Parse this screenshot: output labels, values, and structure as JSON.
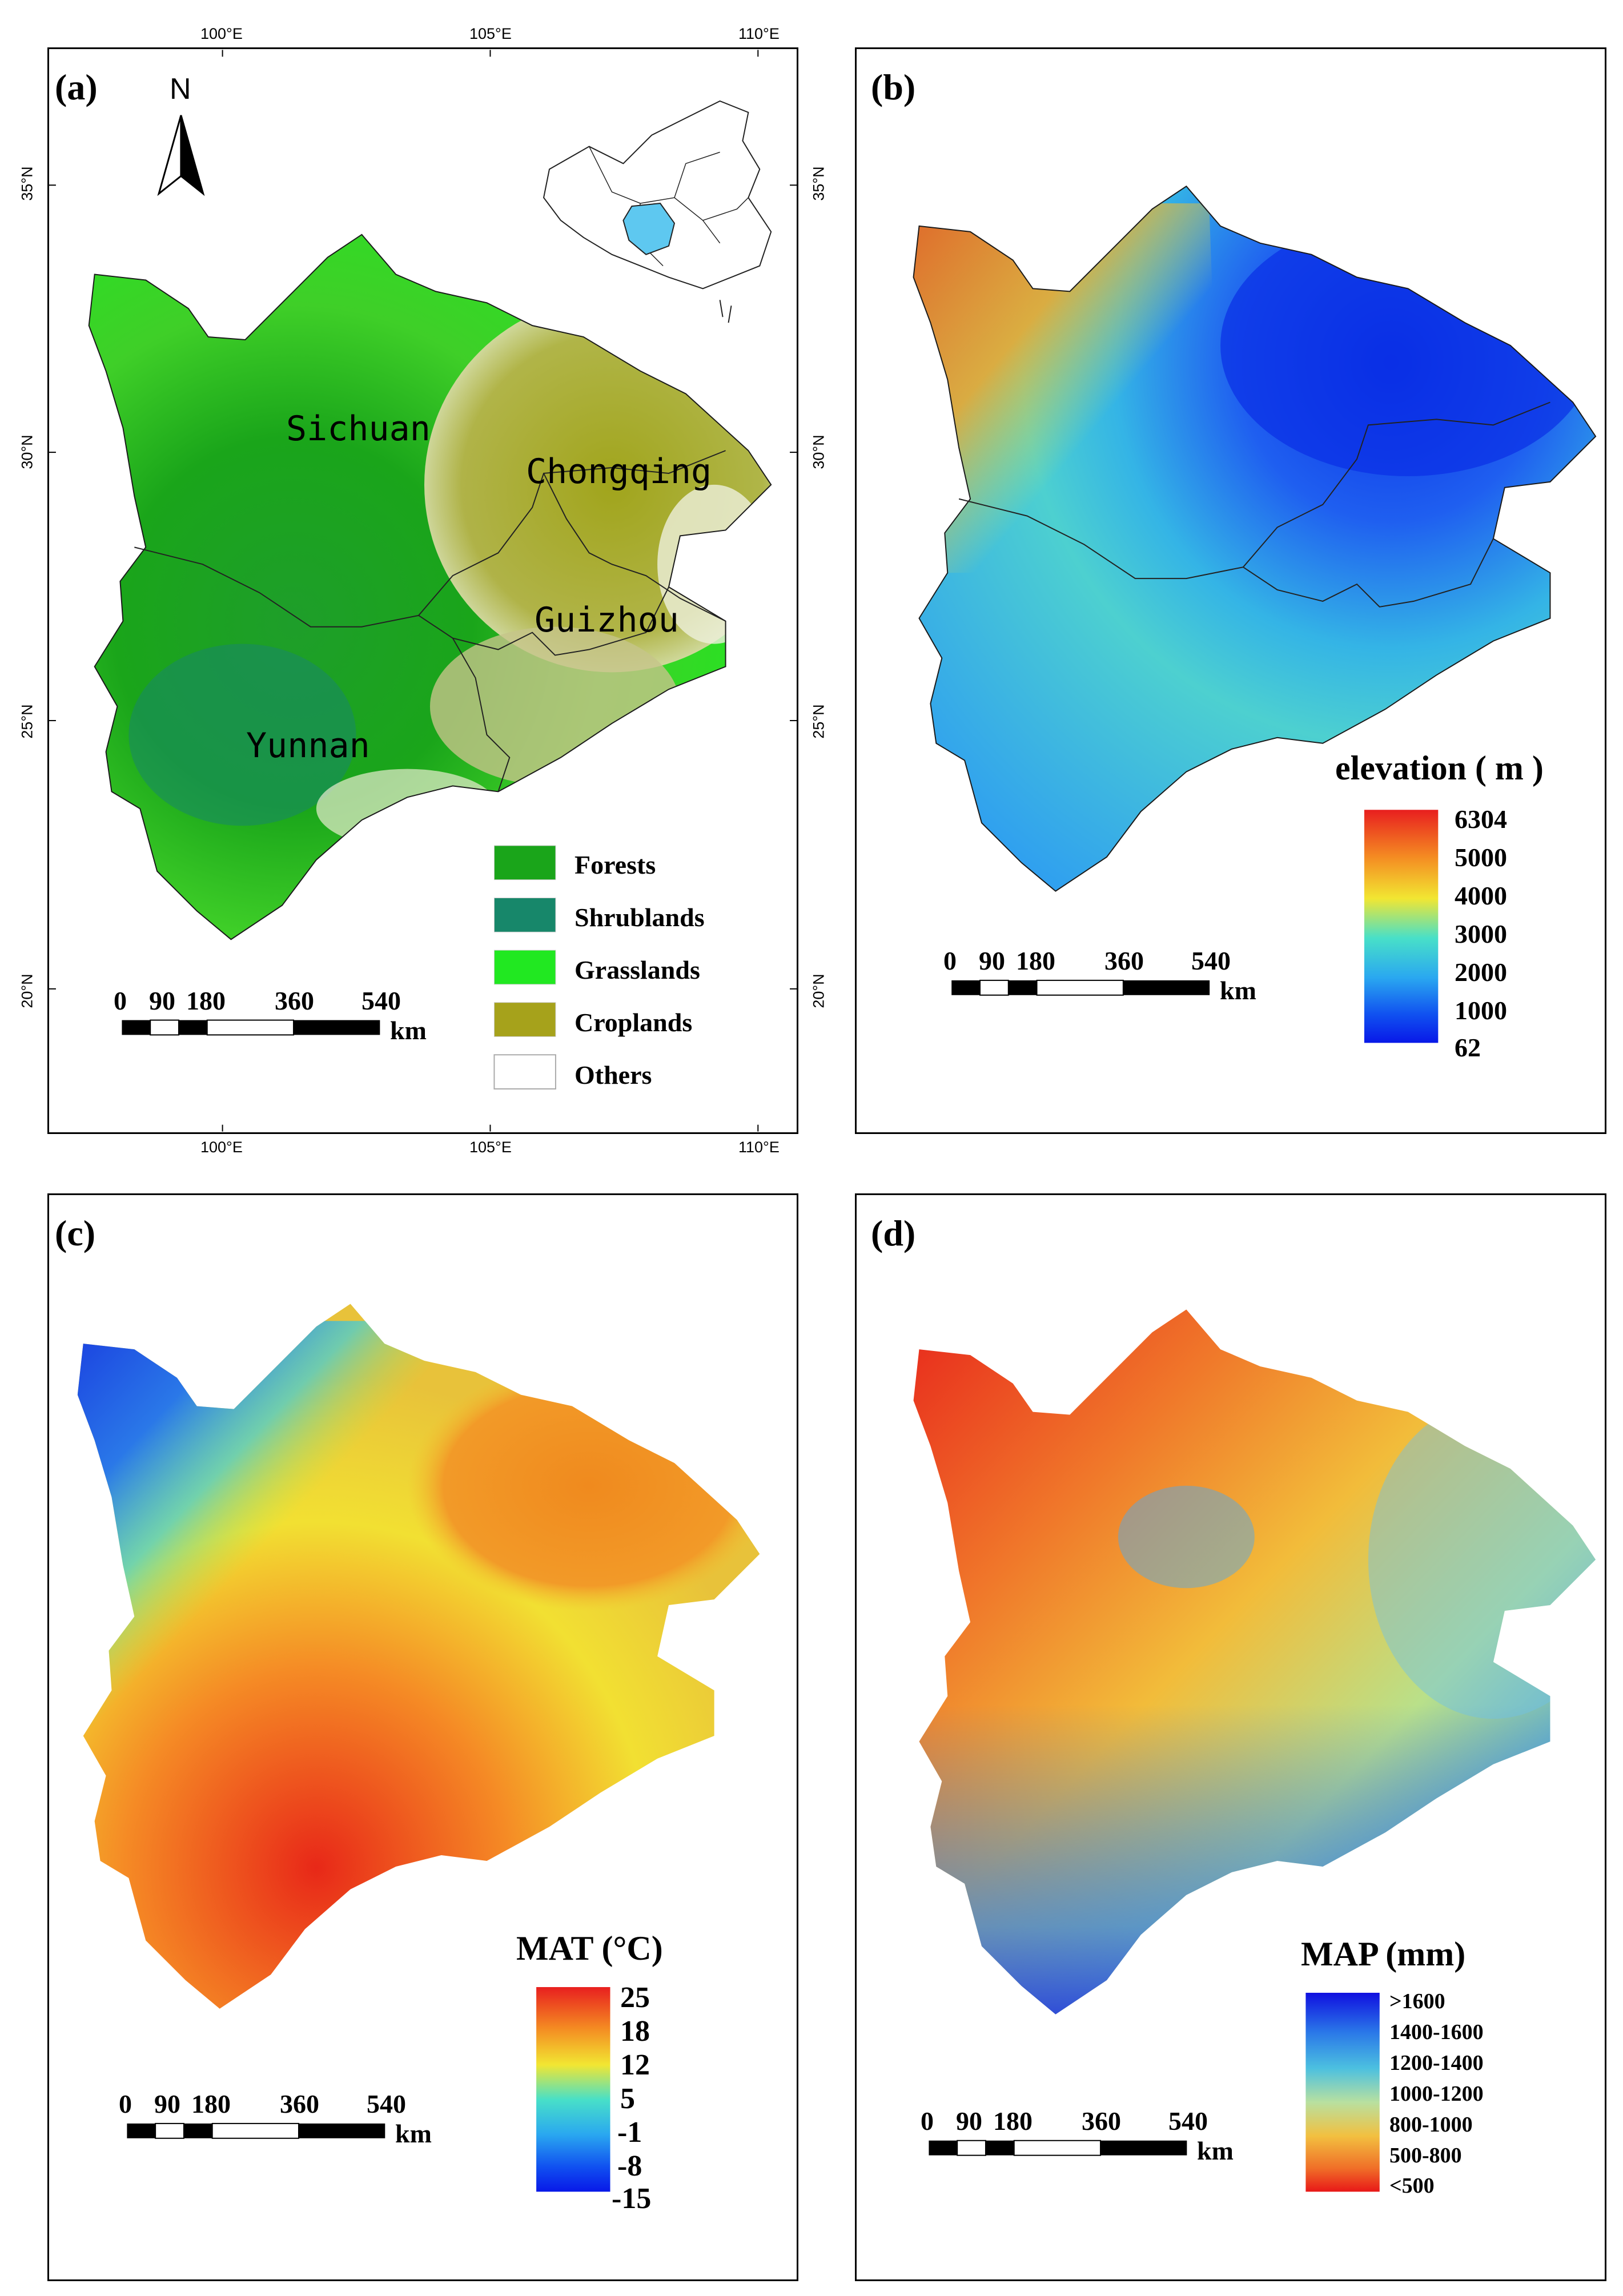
{
  "panels": {
    "a": {
      "label": "(a)",
      "north": "N",
      "lon_top": [
        "100°E",
        "105°E",
        "110°E"
      ],
      "lon_bottom": [
        "100°E",
        "105°E",
        "110°E"
      ],
      "lat_left": [
        "35°N",
        "30°N",
        "25°N",
        "20°N"
      ],
      "lat_right": [
        "35°N",
        "30°N",
        "25°N",
        "20°N"
      ],
      "provinces": [
        "Sichuan",
        "Chongqing",
        "Guizhou",
        "Yunnan"
      ],
      "legend": [
        {
          "label": "Forests",
          "color": "#1aa51a"
        },
        {
          "label": "Shrublands",
          "color": "#17876a"
        },
        {
          "label": "Grasslands",
          "color": "#21e821"
        },
        {
          "label": "Croplands",
          "color": "#a6a21b"
        },
        {
          "label": "Others",
          "color": "#ffffff"
        }
      ],
      "scale": {
        "ticks": [
          "0",
          "90",
          "180",
          "360",
          "540"
        ],
        "unit": "km"
      }
    },
    "b": {
      "label": "(b)",
      "title": "elevation ( m )",
      "colorbar": [
        "6304",
        "5000",
        "4000",
        "3000",
        "2000",
        "1000",
        "62"
      ],
      "scale": {
        "ticks": [
          "0",
          "90",
          "180",
          "360",
          "540"
        ],
        "unit": "km"
      }
    },
    "c": {
      "label": "(c)",
      "title": "MAT (°C)",
      "colorbar": [
        "25",
        "18",
        "12",
        "5",
        "-1",
        "-8",
        "-15"
      ],
      "scale": {
        "ticks": [
          "0",
          "90",
          "180",
          "360",
          "540"
        ],
        "unit": "km"
      }
    },
    "d": {
      "label": "(d)",
      "title": "MAP (mm)",
      "colorbar": [
        ">1600",
        "1400-1600",
        "1200-1400",
        "1000-1200",
        "800-1000",
        "500-800",
        "<500"
      ],
      "scale": {
        "ticks": [
          "0",
          "90",
          "180",
          "360",
          "540"
        ],
        "unit": "km"
      }
    }
  }
}
